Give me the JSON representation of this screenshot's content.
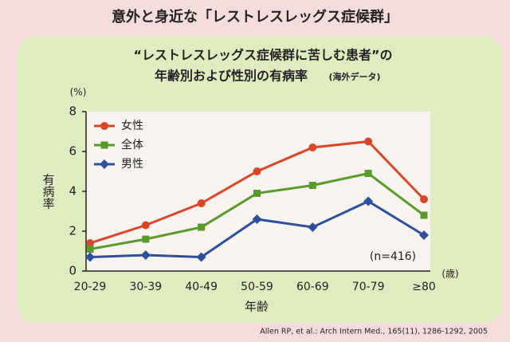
{
  "header": "意外と身近な「レストレスレッグス症候群」",
  "chart_data": {
    "type": "line",
    "title": "“レストレスレッグス症候群に苦しむ患者”の",
    "subtitle": "年齢別および性別の有病率",
    "subtitle_note": "(海外データ)",
    "y_unit": "(%)",
    "y_label": "有病率",
    "x_label": "年齢",
    "x_unit": "(歳)",
    "annotation": "(n=416)",
    "categories": [
      "20-29",
      "30-39",
      "40-49",
      "50-59",
      "60-69",
      "70-79",
      "≥80"
    ],
    "series": [
      {
        "name": "女性",
        "color": "#d9472b",
        "marker": "circle",
        "values": [
          1.4,
          2.3,
          3.4,
          5.0,
          6.2,
          6.5,
          3.6
        ]
      },
      {
        "name": "全体",
        "color": "#5a9a2a",
        "marker": "square",
        "values": [
          1.1,
          1.6,
          2.2,
          3.9,
          4.3,
          4.9,
          2.8
        ]
      },
      {
        "name": "男性",
        "color": "#2f4f9e",
        "marker": "diamond",
        "values": [
          0.7,
          0.8,
          0.7,
          2.6,
          2.2,
          3.5,
          1.8
        ]
      }
    ],
    "ylim": [
      0,
      8
    ],
    "yticks": [
      0,
      2,
      4,
      6,
      8
    ],
    "legend": "top-left"
  },
  "source": "Allen RP, et al.: Arch Intern Med., 165(11), 1286-1292, 2005"
}
